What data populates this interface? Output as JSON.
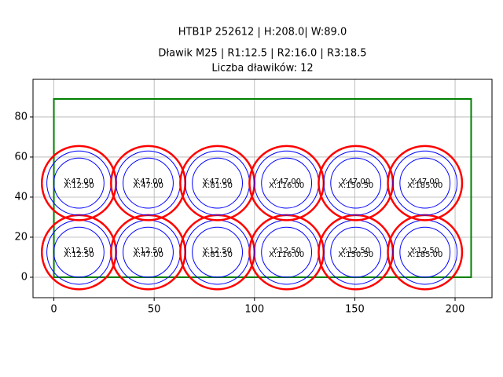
{
  "chart_data": {
    "type": "circles",
    "title_lines": [
      "HTB1P 252612 | H:208.0| W:89.0",
      "Dławik M25 | R1:12.5 | R2:16.0 | R3:18.5",
      "Liczba dławików: 12"
    ],
    "rectangle": {
      "x": [
        0,
        208
      ],
      "y": [
        0,
        89
      ],
      "color": "#008000"
    },
    "x": [
      12.5,
      47,
      81.5,
      116,
      150.5,
      185,
      12.5,
      47,
      81.5,
      116,
      150.5,
      185
    ],
    "y": [
      12.5,
      12.5,
      12.5,
      12.5,
      12.5,
      12.5,
      47,
      47,
      47,
      47,
      47,
      47
    ],
    "x_labels": [
      "X:12.50",
      "X:47.00",
      "X:81.50",
      "X:116.00",
      "X:150.50",
      "X:185.00",
      "X:12.50",
      "X:47.00",
      "X:81.50",
      "X:116.00",
      "X:150.50",
      "X:185.00"
    ],
    "y_labels": [
      "Y:12.50",
      "Y:12.50",
      "Y:12.50",
      "Y:12.50",
      "Y:12.50",
      "Y:12.50",
      "Y:47.00",
      "Y:47.00",
      "Y:47.00",
      "Y:47.00",
      "Y:47.00",
      "Y:47.00"
    ],
    "radii": [
      12.5,
      16,
      18.5
    ],
    "radius_colors": [
      "#0000ff",
      "#0000ff",
      "#ff0000"
    ],
    "xlim": [
      -10.4,
      218.4
    ],
    "ylim": [
      -10.2,
      98.8
    ],
    "xticks": [
      0,
      50,
      100,
      150,
      200
    ],
    "yticks": [
      0,
      20,
      40,
      60,
      80
    ],
    "grid": true
  }
}
